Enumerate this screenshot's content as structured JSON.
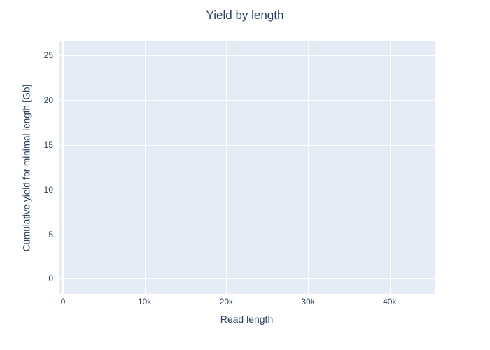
{
  "figure": {
    "title": "Yield by length",
    "x_axis_title": "Read length",
    "y_axis_title": "Cumulative yield for minimal length [Gb]"
  },
  "colors": {
    "paper_bg": "#ffffff",
    "plot_bg": "#e5ecf6",
    "grid": "#ffffff",
    "font": "#2a3f5f"
  },
  "chart_data": {
    "type": "line",
    "title": "Yield by length",
    "xlabel": "Read length",
    "ylabel": "Cumulative yield for minimal length [Gb]",
    "series": [],
    "x_ticks": [
      {
        "value": 0,
        "label": "0"
      },
      {
        "value": 10000,
        "label": "10k"
      },
      {
        "value": 20000,
        "label": "20k"
      },
      {
        "value": 30000,
        "label": "30k"
      },
      {
        "value": 40000,
        "label": "40k"
      }
    ],
    "y_ticks": [
      {
        "value": 0,
        "label": "0"
      },
      {
        "value": 5,
        "label": "5"
      },
      {
        "value": 10,
        "label": "10"
      },
      {
        "value": 15,
        "label": "15"
      },
      {
        "value": 20,
        "label": "20"
      },
      {
        "value": 25,
        "label": "25"
      }
    ],
    "xlim": [
      -514,
      45500
    ],
    "ylim": [
      -1.7,
      26.6
    ],
    "grid": true,
    "legend": false,
    "zeroline_values": {
      "x": 0,
      "y": 0
    }
  }
}
